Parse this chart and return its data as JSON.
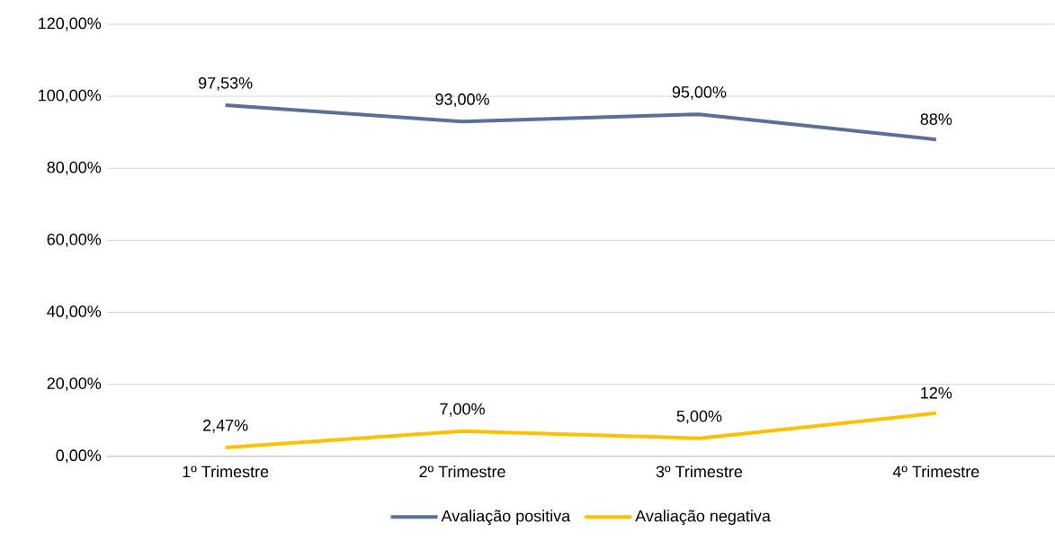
{
  "chart_data": {
    "type": "line",
    "categories": [
      "1º Trimestre",
      "2º Trimestre",
      "3º Trimestre",
      "4º Trimestre"
    ],
    "series": [
      {
        "name": "Avaliação positiva",
        "color": "#5b6f99",
        "values": [
          97.53,
          93,
          95,
          88
        ],
        "value_labels": [
          "97,53%",
          "93,00%",
          "95,00%",
          "88%"
        ]
      },
      {
        "name": "Avaliação negativa",
        "color": "#ffc000",
        "values": [
          2.47,
          7,
          5,
          12
        ],
        "value_labels": [
          "2,47%",
          "7,00%",
          "5,00%",
          "12%"
        ]
      }
    ],
    "ylim": [
      0,
      120
    ],
    "yticks": [
      {
        "value": 0,
        "label": "0,00%"
      },
      {
        "value": 20,
        "label": "20,00%"
      },
      {
        "value": 40,
        "label": "40,00%"
      },
      {
        "value": 60,
        "label": "60,00%"
      },
      {
        "value": 80,
        "label": "80,00%"
      },
      {
        "value": 100,
        "label": "100,00%"
      },
      {
        "value": 120,
        "label": "120,00%"
      }
    ],
    "grid": "y",
    "legend": "bottom",
    "marker": "none",
    "line_style": "solid"
  }
}
